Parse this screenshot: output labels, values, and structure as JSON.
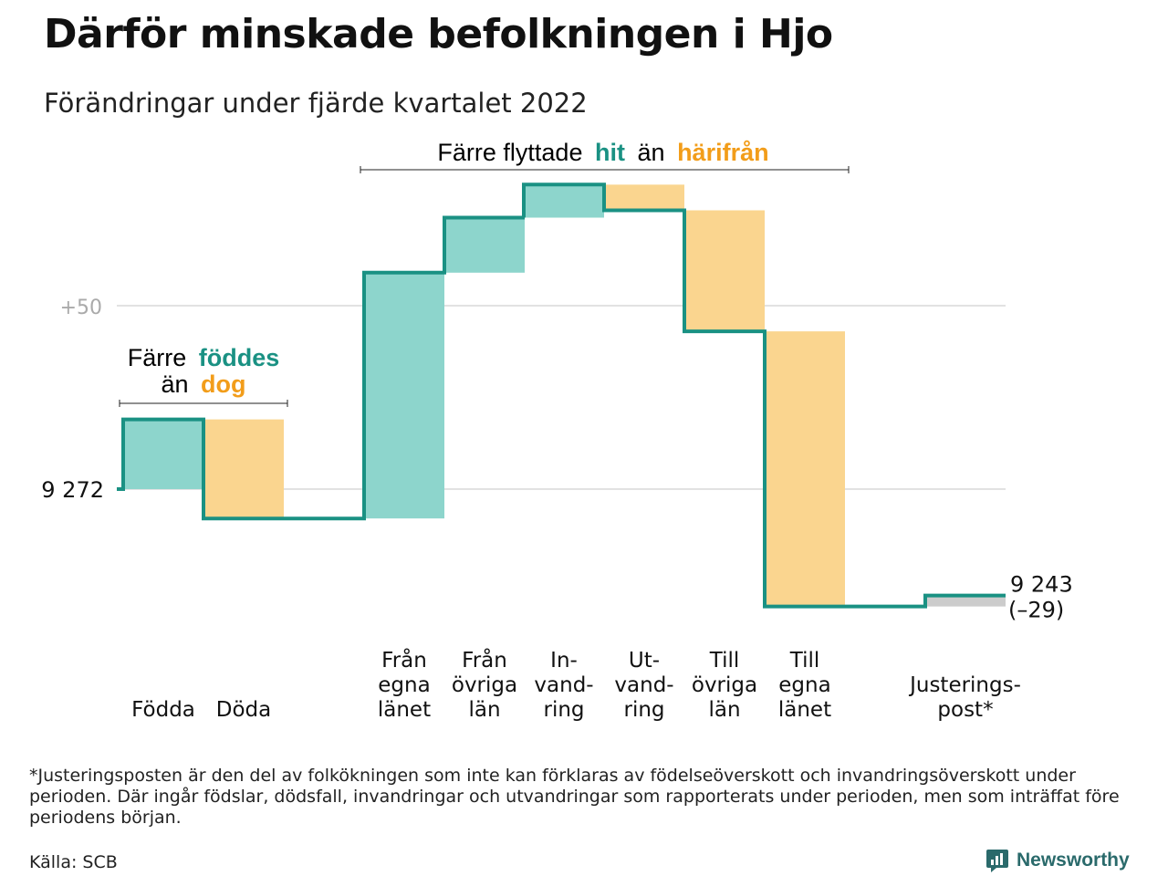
{
  "title": "Därför minskade befolkningen i Hjo",
  "subtitle": "Förändringar under fjärde kvartalet 2022",
  "colors": {
    "increase": "#8dd5cc",
    "decrease": "#fad58f",
    "adjustment": "#cccccc",
    "line": "#1a9183",
    "accent_green": "#1a9183",
    "accent_orange": "#f29d1a",
    "grid": "#e2e2e2",
    "logo": "#2a6a6b"
  },
  "annotations": {
    "birth_death": {
      "line1_prefix": "Färre",
      "line1_highlight": "föddes",
      "line2_prefix": "än",
      "line2_highlight": "dog"
    },
    "migration": {
      "prefix": "Färre flyttade",
      "highlight1": "hit",
      "middle": "än",
      "highlight2": "härifrån"
    }
  },
  "chart_data": {
    "type": "waterfall",
    "start_value": 9272,
    "start_label": "9 272",
    "end_value": 9243,
    "end_label": "9 243",
    "end_change_label": "(–29)",
    "ytick_labels": [
      {
        "value": 9322,
        "label": "+50"
      }
    ],
    "grid": true,
    "steps": [
      {
        "label_lines": [
          "Födda"
        ],
        "value": 19,
        "kind": "increase"
      },
      {
        "label_lines": [
          "Döda"
        ],
        "value": -27,
        "kind": "decrease"
      },
      {
        "label_lines": [
          "Från",
          "egna",
          "länet"
        ],
        "value": 67,
        "kind": "increase"
      },
      {
        "label_lines": [
          "Från",
          "övriga",
          "län"
        ],
        "value": 15,
        "kind": "increase"
      },
      {
        "label_lines": [
          "In-",
          "vand-",
          "ring"
        ],
        "value": 9,
        "kind": "increase"
      },
      {
        "label_lines": [
          "Ut-",
          "vand-",
          "ring"
        ],
        "value": -7,
        "kind": "decrease"
      },
      {
        "label_lines": [
          "Till",
          "övriga",
          "län"
        ],
        "value": -33,
        "kind": "decrease"
      },
      {
        "label_lines": [
          "Till",
          "egna",
          "länet"
        ],
        "value": -75,
        "kind": "decrease"
      },
      {
        "label_lines": [
          "Justerings-",
          "post*"
        ],
        "value": 3,
        "kind": "adjustment"
      }
    ]
  },
  "footnote": "*Justeringsposten är den del av folkökningen som inte kan förklaras av födelseöverskott och invandringsöverskott under perioden. Där ingår födslar, dödsfall, invandringar och utvandringar som rapporterats under perioden, men som inträffat före periodens början.",
  "source": "Källa: SCB",
  "logo_text": "Newsworthy"
}
